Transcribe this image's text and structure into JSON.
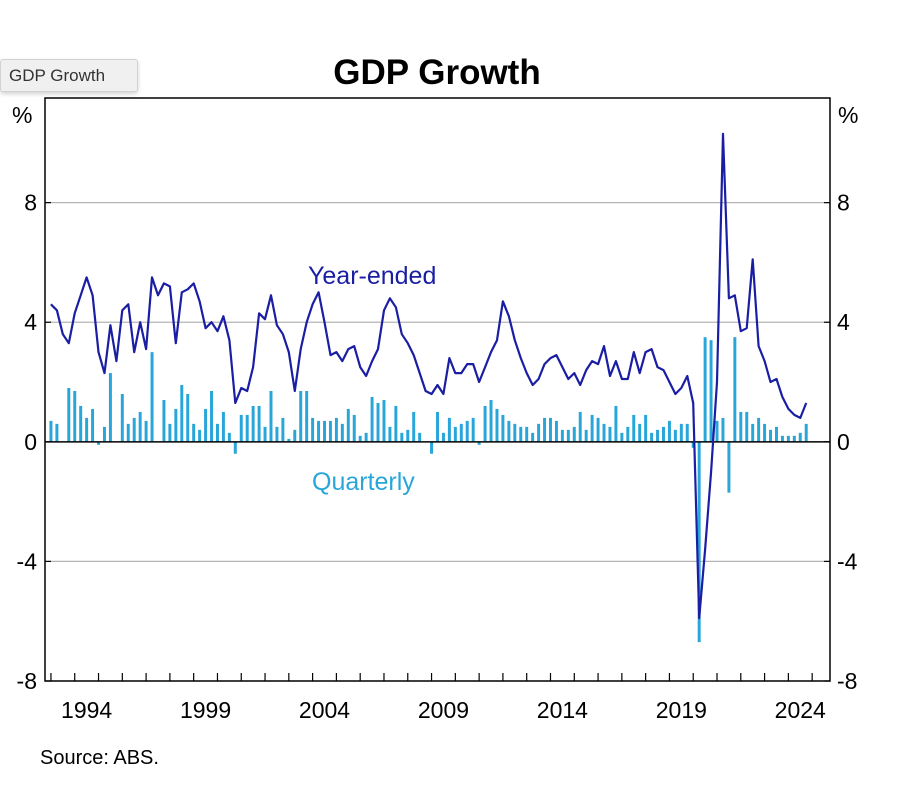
{
  "tooltip": "GDP Growth",
  "source": "Source:   ABS.",
  "colors": {
    "year_ended": "#1a1ea3",
    "quarterly": "#29a6d9",
    "grid": "#b5b5b5"
  },
  "chart_data": {
    "type": "bar+line",
    "title": "GDP Growth",
    "yunit_left": "%",
    "yunit_right": "%",
    "ylim": [
      -8,
      11.5
    ],
    "yticks": [
      -8,
      -4,
      0,
      4,
      8
    ],
    "xlim": [
      1992.75,
      2025.75
    ],
    "xticks": [
      1994,
      1999,
      2004,
      2009,
      2014,
      2019,
      2024
    ],
    "grid": true,
    "series": [
      {
        "name": "Year-ended",
        "type": "line",
        "start": 1993.0,
        "step": 0.25,
        "values": [
          4.6,
          4.4,
          3.6,
          3.3,
          4.3,
          4.9,
          5.5,
          4.9,
          3.0,
          2.3,
          3.9,
          2.7,
          4.4,
          4.6,
          3.0,
          4.0,
          3.1,
          5.5,
          4.9,
          5.3,
          5.2,
          3.3,
          5.0,
          5.1,
          5.3,
          4.7,
          3.8,
          4.0,
          3.7,
          4.2,
          3.4,
          1.3,
          1.8,
          1.7,
          2.5,
          4.3,
          4.1,
          4.9,
          3.9,
          3.6,
          3.0,
          1.7,
          3.1,
          4.0,
          4.6,
          5.0,
          4.0,
          2.9,
          3.0,
          2.7,
          3.1,
          3.2,
          2.5,
          2.2,
          2.7,
          3.1,
          4.4,
          4.8,
          4.5,
          3.6,
          3.3,
          2.9,
          2.3,
          1.7,
          1.6,
          1.9,
          1.6,
          2.8,
          2.3,
          2.3,
          2.6,
          2.6,
          2.0,
          2.5,
          3.0,
          3.4,
          4.7,
          4.2,
          3.4,
          2.8,
          2.3,
          1.9,
          2.1,
          2.6,
          2.8,
          2.9,
          2.5,
          2.1,
          2.3,
          1.9,
          2.4,
          2.7,
          2.6,
          3.2,
          2.2,
          2.7,
          2.1,
          2.1,
          3.0,
          2.3,
          3.0,
          3.1,
          2.5,
          2.4,
          2.0,
          1.6,
          1.8,
          2.2,
          1.3,
          -5.9,
          -3.6,
          -1.0,
          2.0,
          10.3,
          4.8,
          4.9,
          3.7,
          3.8,
          6.1,
          3.2,
          2.7,
          2.0,
          2.1,
          1.5,
          1.1,
          0.9,
          0.8,
          1.3
        ]
      },
      {
        "name": "Quarterly",
        "type": "bar",
        "start": 1993.0,
        "step": 0.25,
        "values": [
          0.7,
          0.6,
          0.0,
          1.8,
          1.7,
          1.2,
          0.8,
          1.1,
          -0.1,
          0.5,
          2.3,
          0.0,
          1.6,
          0.6,
          0.8,
          1.0,
          0.7,
          3.0,
          0.0,
          1.4,
          0.6,
          1.1,
          1.9,
          1.6,
          0.6,
          0.4,
          1.1,
          1.7,
          0.6,
          1.0,
          0.3,
          -0.4,
          0.9,
          0.9,
          1.2,
          1.2,
          0.5,
          1.7,
          0.5,
          0.8,
          0.1,
          0.4,
          1.7,
          1.7,
          0.8,
          0.7,
          0.7,
          0.7,
          0.8,
          0.6,
          1.1,
          0.9,
          0.2,
          0.3,
          1.5,
          1.3,
          1.4,
          0.5,
          1.2,
          0.3,
          0.4,
          1.0,
          0.3,
          0.0,
          -0.4,
          1.0,
          0.3,
          0.8,
          0.5,
          0.6,
          0.7,
          0.8,
          -0.1,
          1.2,
          1.4,
          1.1,
          0.9,
          0.7,
          0.6,
          0.5,
          0.5,
          0.3,
          0.6,
          0.8,
          0.8,
          0.7,
          0.4,
          0.4,
          0.5,
          1.0,
          0.4,
          0.9,
          0.8,
          0.6,
          0.5,
          1.2,
          0.3,
          0.5,
          0.9,
          0.6,
          0.9,
          0.3,
          0.4,
          0.5,
          0.7,
          0.4,
          0.6,
          0.6,
          -0.2,
          -6.7,
          3.5,
          3.4,
          0.7,
          0.8,
          -1.7,
          3.5,
          1.0,
          1.0,
          0.6,
          0.8,
          0.6,
          0.4,
          0.5,
          0.2,
          0.2,
          0.2,
          0.3,
          0.6
        ]
      }
    ]
  }
}
